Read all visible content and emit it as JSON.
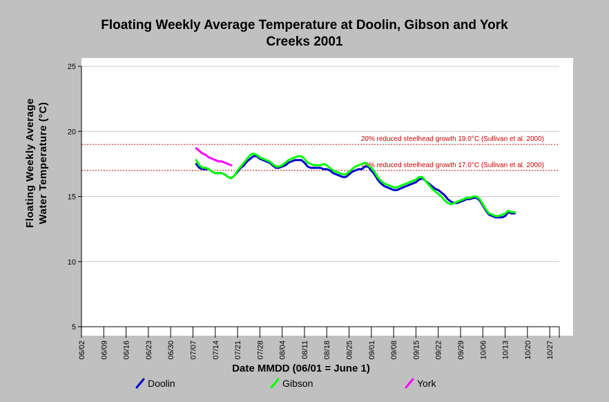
{
  "chart_data": {
    "type": "line",
    "title_line1": "Floating Weekly Average Temperature at Doolin, Gibson and York",
    "title_line2": "Creeks 2001",
    "xlabel": "Date MMDD (06/01 = June 1)",
    "ylabel_line1": "Floating Weekly Average",
    "ylabel_line2": "Water Temperature (°C)",
    "x_ticks": [
      "06/02",
      "06/09",
      "06/16",
      "06/23",
      "06/30",
      "07/07",
      "07/14",
      "07/21",
      "07/28",
      "08/04",
      "08/11",
      "08/18",
      "08/25",
      "09/01",
      "09/08",
      "09/15",
      "09/22",
      "09/29",
      "10/06",
      "10/13",
      "10/20",
      "10/27"
    ],
    "x_tick_days": [
      2,
      9,
      16,
      23,
      30,
      37,
      44,
      51,
      58,
      65,
      72,
      79,
      86,
      93,
      100,
      107,
      114,
      121,
      128,
      135,
      142,
      149
    ],
    "xlim": [
      2,
      152
    ],
    "ylim": [
      5,
      25
    ],
    "y_ticks": [
      5,
      10,
      15,
      20,
      25
    ],
    "grid": true,
    "legend_position": "bottom",
    "reference_lines": [
      {
        "y": 19.0,
        "label": "20% reduced steelhead growth 19.0°C (Sullivan et al. 2000)",
        "color": "#cc0000"
      },
      {
        "y": 17.0,
        "label": "10% reduced steelhead growth 17.0°C (Sullivan et al. 2000)",
        "color": "#cc0000"
      }
    ],
    "series": [
      {
        "name": "Doolin",
        "color": "#0000cc",
        "points": [
          [
            38,
            17.5
          ],
          [
            39,
            17.2
          ],
          [
            40,
            17.1
          ],
          [
            41,
            17.1
          ],
          [
            42,
            17.1
          ],
          [
            43,
            16.9
          ],
          [
            44,
            16.8
          ],
          [
            45,
            16.8
          ],
          [
            46,
            16.8
          ],
          [
            47,
            16.7
          ],
          [
            48,
            16.5
          ],
          [
            49,
            16.4
          ],
          [
            50,
            16.6
          ],
          [
            51,
            16.9
          ],
          [
            52,
            17.2
          ],
          [
            53,
            17.4
          ],
          [
            54,
            17.7
          ],
          [
            55,
            17.9
          ],
          [
            56,
            18.1
          ],
          [
            57,
            18.1
          ],
          [
            58,
            17.9
          ],
          [
            59,
            17.8
          ],
          [
            60,
            17.7
          ],
          [
            61,
            17.6
          ],
          [
            62,
            17.4
          ],
          [
            63,
            17.2
          ],
          [
            64,
            17.2
          ],
          [
            65,
            17.3
          ],
          [
            66,
            17.4
          ],
          [
            67,
            17.6
          ],
          [
            68,
            17.7
          ],
          [
            69,
            17.8
          ],
          [
            70,
            17.8
          ],
          [
            71,
            17.8
          ],
          [
            72,
            17.6
          ],
          [
            73,
            17.3
          ],
          [
            74,
            17.2
          ],
          [
            75,
            17.2
          ],
          [
            76,
            17.2
          ],
          [
            77,
            17.2
          ],
          [
            78,
            17.1
          ],
          [
            79,
            17.1
          ],
          [
            80,
            17.0
          ],
          [
            81,
            16.8
          ],
          [
            82,
            16.7
          ],
          [
            83,
            16.6
          ],
          [
            84,
            16.5
          ],
          [
            85,
            16.5
          ],
          [
            86,
            16.7
          ],
          [
            87,
            16.9
          ],
          [
            88,
            17.0
          ],
          [
            89,
            17.1
          ],
          [
            90,
            17.1
          ],
          [
            91,
            17.3
          ],
          [
            92,
            17.3
          ],
          [
            93,
            17.0
          ],
          [
            94,
            16.7
          ],
          [
            95,
            16.3
          ],
          [
            96,
            16.0
          ],
          [
            97,
            15.8
          ],
          [
            98,
            15.7
          ],
          [
            99,
            15.6
          ],
          [
            100,
            15.5
          ],
          [
            101,
            15.5
          ],
          [
            102,
            15.6
          ],
          [
            103,
            15.7
          ],
          [
            104,
            15.8
          ],
          [
            105,
            15.9
          ],
          [
            106,
            16.0
          ],
          [
            107,
            16.1
          ],
          [
            108,
            16.3
          ],
          [
            109,
            16.4
          ],
          [
            110,
            16.2
          ],
          [
            111,
            16.0
          ],
          [
            112,
            15.8
          ],
          [
            113,
            15.6
          ],
          [
            114,
            15.5
          ],
          [
            115,
            15.3
          ],
          [
            116,
            15.1
          ],
          [
            117,
            14.8
          ],
          [
            118,
            14.6
          ],
          [
            119,
            14.5
          ],
          [
            120,
            14.5
          ],
          [
            121,
            14.6
          ],
          [
            122,
            14.7
          ],
          [
            123,
            14.8
          ],
          [
            124,
            14.8
          ],
          [
            125,
            14.9
          ],
          [
            126,
            14.9
          ],
          [
            127,
            14.7
          ],
          [
            128,
            14.3
          ],
          [
            129,
            13.9
          ],
          [
            130,
            13.6
          ],
          [
            131,
            13.5
          ],
          [
            132,
            13.4
          ],
          [
            133,
            13.4
          ],
          [
            134,
            13.4
          ],
          [
            135,
            13.5
          ],
          [
            136,
            13.8
          ],
          [
            137,
            13.7
          ],
          [
            138,
            13.7
          ]
        ]
      },
      {
        "name": "Gibson",
        "color": "#00ff00",
        "points": [
          [
            38,
            17.8
          ],
          [
            39,
            17.4
          ],
          [
            40,
            17.2
          ],
          [
            41,
            17.2
          ],
          [
            42,
            17.1
          ],
          [
            43,
            16.9
          ],
          [
            44,
            16.8
          ],
          [
            45,
            16.8
          ],
          [
            46,
            16.8
          ],
          [
            47,
            16.7
          ],
          [
            48,
            16.5
          ],
          [
            49,
            16.4
          ],
          [
            50,
            16.6
          ],
          [
            51,
            17.0
          ],
          [
            52,
            17.3
          ],
          [
            53,
            17.6
          ],
          [
            54,
            17.9
          ],
          [
            55,
            18.2
          ],
          [
            56,
            18.3
          ],
          [
            57,
            18.2
          ],
          [
            58,
            18.0
          ],
          [
            59,
            17.9
          ],
          [
            60,
            17.8
          ],
          [
            61,
            17.7
          ],
          [
            62,
            17.5
          ],
          [
            63,
            17.3
          ],
          [
            64,
            17.3
          ],
          [
            65,
            17.4
          ],
          [
            66,
            17.6
          ],
          [
            67,
            17.8
          ],
          [
            68,
            17.9
          ],
          [
            69,
            18.0
          ],
          [
            70,
            18.1
          ],
          [
            71,
            18.1
          ],
          [
            72,
            17.9
          ],
          [
            73,
            17.6
          ],
          [
            74,
            17.5
          ],
          [
            75,
            17.4
          ],
          [
            76,
            17.4
          ],
          [
            77,
            17.4
          ],
          [
            78,
            17.5
          ],
          [
            79,
            17.4
          ],
          [
            80,
            17.2
          ],
          [
            81,
            17.0
          ],
          [
            82,
            16.9
          ],
          [
            83,
            16.8
          ],
          [
            84,
            16.7
          ],
          [
            85,
            16.7
          ],
          [
            86,
            16.9
          ],
          [
            87,
            17.1
          ],
          [
            88,
            17.3
          ],
          [
            89,
            17.4
          ],
          [
            90,
            17.5
          ],
          [
            91,
            17.6
          ],
          [
            92,
            17.4
          ],
          [
            93,
            17.2
          ],
          [
            94,
            16.9
          ],
          [
            95,
            16.5
          ],
          [
            96,
            16.2
          ],
          [
            97,
            16.0
          ],
          [
            98,
            15.9
          ],
          [
            99,
            15.8
          ],
          [
            100,
            15.7
          ],
          [
            101,
            15.7
          ],
          [
            102,
            15.8
          ],
          [
            103,
            15.9
          ],
          [
            104,
            16.0
          ],
          [
            105,
            16.1
          ],
          [
            106,
            16.2
          ],
          [
            107,
            16.3
          ],
          [
            108,
            16.5
          ],
          [
            109,
            16.5
          ],
          [
            110,
            16.2
          ],
          [
            111,
            15.9
          ],
          [
            112,
            15.6
          ],
          [
            113,
            15.4
          ],
          [
            114,
            15.2
          ],
          [
            115,
            15.0
          ],
          [
            116,
            14.7
          ],
          [
            117,
            14.5
          ],
          [
            118,
            14.4
          ],
          [
            119,
            14.5
          ],
          [
            120,
            14.6
          ],
          [
            121,
            14.7
          ],
          [
            122,
            14.8
          ],
          [
            123,
            14.9
          ],
          [
            124,
            14.9
          ],
          [
            125,
            15.0
          ],
          [
            126,
            15.0
          ],
          [
            127,
            14.8
          ],
          [
            128,
            14.4
          ],
          [
            129,
            14.0
          ],
          [
            130,
            13.7
          ],
          [
            131,
            13.6
          ],
          [
            132,
            13.5
          ],
          [
            133,
            13.5
          ],
          [
            134,
            13.6
          ],
          [
            135,
            13.7
          ],
          [
            136,
            13.9
          ],
          [
            137,
            13.8
          ],
          [
            138,
            13.8
          ]
        ]
      },
      {
        "name": "York",
        "color": "#ff00ff",
        "points": [
          [
            38,
            18.7
          ],
          [
            39,
            18.5
          ],
          [
            40,
            18.3
          ],
          [
            41,
            18.2
          ],
          [
            42,
            18.0
          ],
          [
            43,
            17.9
          ],
          [
            44,
            17.8
          ],
          [
            45,
            17.7
          ],
          [
            46,
            17.7
          ],
          [
            47,
            17.6
          ],
          [
            48,
            17.5
          ],
          [
            49,
            17.4
          ]
        ]
      }
    ]
  }
}
